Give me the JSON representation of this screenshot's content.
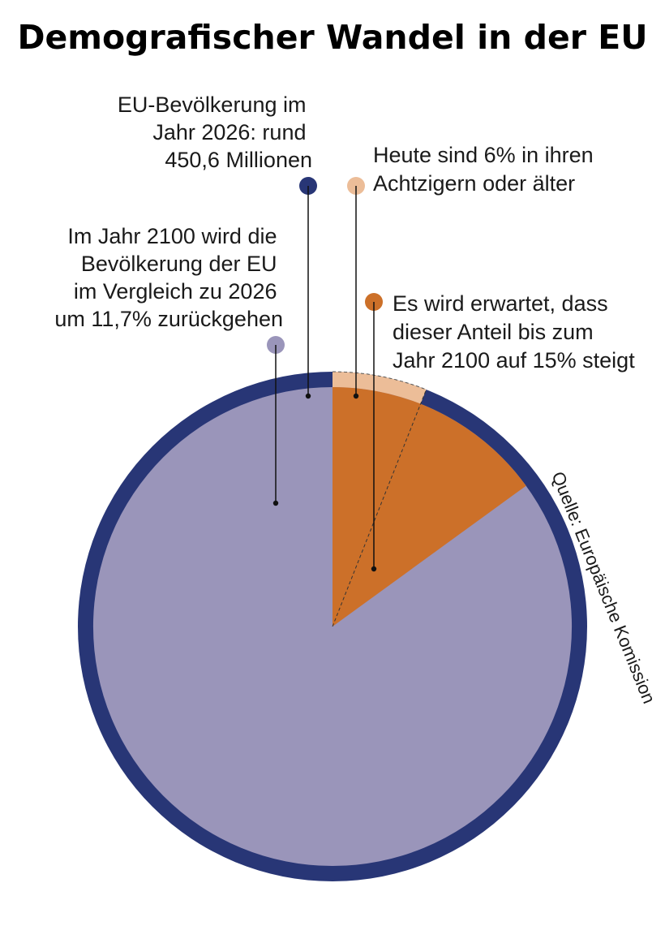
{
  "title": "Demografischer Wandel in der EU",
  "source": "Quelle: Europäische Komission",
  "colors": {
    "population_2026": "#283676",
    "population_2100": "#9a95ba",
    "over80_today": "#ecbd98",
    "over80_2100": "#cc7029"
  },
  "annotations": {
    "population_2026": [
      "EU-Bevölkerung im",
      "Jahr 2026: rund",
      "450,6 Millionen"
    ],
    "population_2100": [
      "Im Jahr 2100 wird die",
      "Bevölkerung der EU",
      "im Vergleich zu 2026",
      "um 11,7% zurückgehen"
    ],
    "over80_today": [
      "Heute sind 6% in ihren",
      "Achtzigern oder älter"
    ],
    "over80_2100": [
      "Es wird erwartet, dass",
      "dieser Anteil bis zum",
      "Jahr 2100 auf 15% steigt"
    ]
  },
  "chart_data": {
    "type": "pie",
    "title": "Demografischer Wandel in der EU",
    "series": [
      {
        "name": "EU-Bevölkerung 2026",
        "total_millions": 450.6,
        "relative_size": 1.0,
        "share_over_80_percent": 6
      },
      {
        "name": "EU-Bevölkerung 2100",
        "relative_size": 0.883,
        "change_vs_2026_percent": -11.7,
        "share_over_80_percent": 15
      }
    ]
  }
}
